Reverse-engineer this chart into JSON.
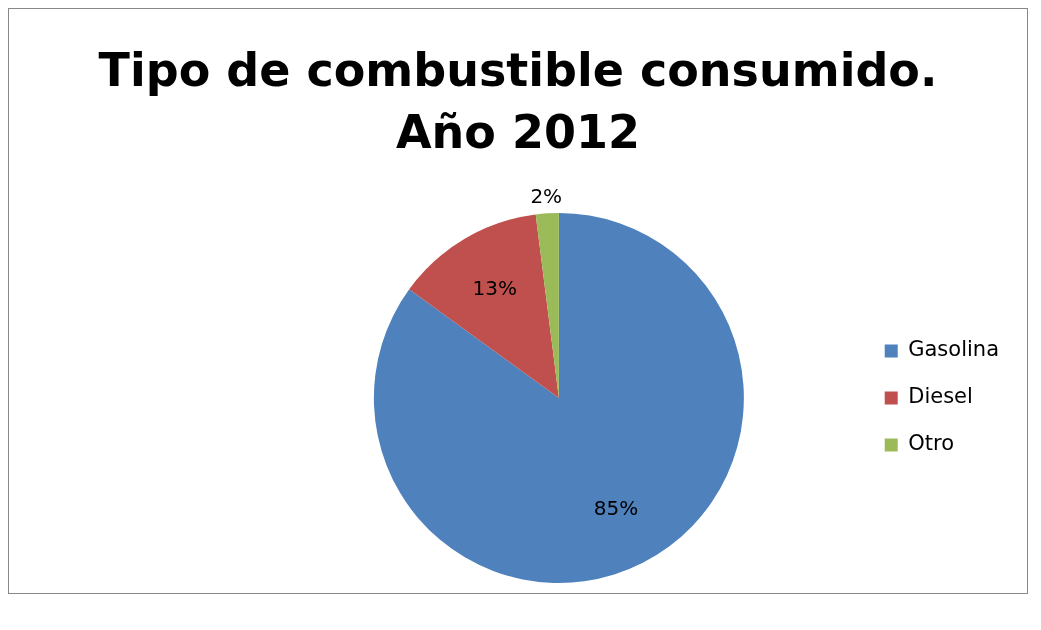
{
  "chart_data": {
    "type": "pie",
    "title": "Tipo de combustible consumido. Año 2012",
    "categories": [
      "Gasolina",
      "Diesel",
      "Otro"
    ],
    "values": [
      85,
      13,
      2
    ],
    "value_labels": [
      "85%",
      "13%",
      "2%"
    ],
    "colors": [
      "#4f81bd",
      "#c0504d",
      "#9bbb59"
    ],
    "legend": "right"
  }
}
